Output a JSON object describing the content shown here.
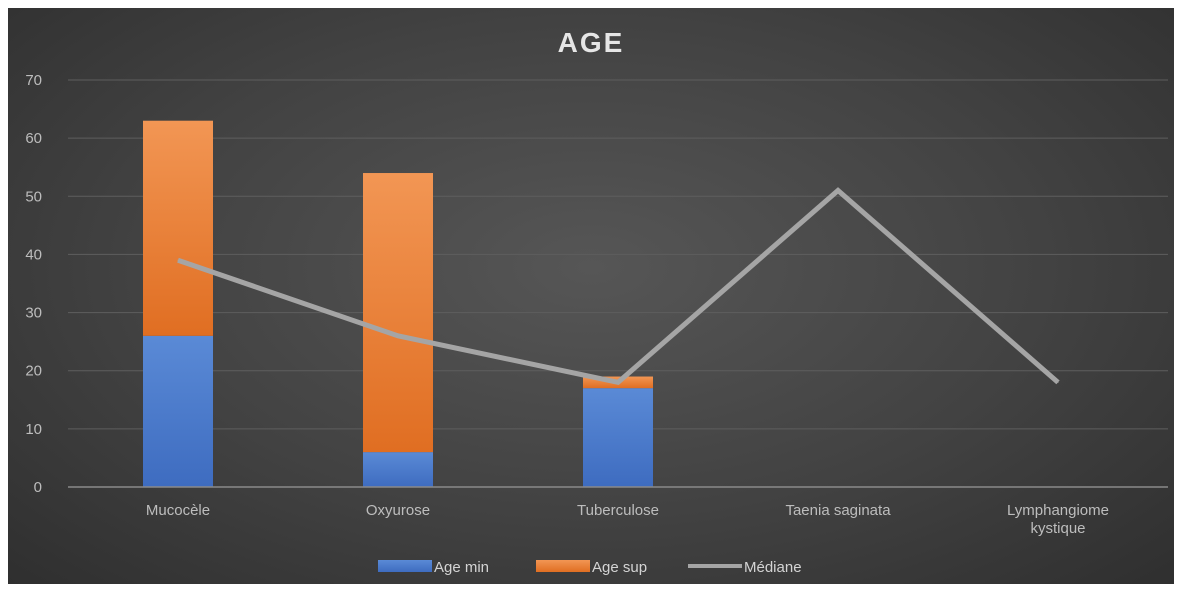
{
  "chart_data": {
    "type": "bar",
    "title": "AGE",
    "xlabel": "",
    "ylabel": "",
    "ylim": [
      0,
      70
    ],
    "yticks": [
      0,
      10,
      20,
      30,
      40,
      50,
      60,
      70
    ],
    "grid": true,
    "legend_position": "bottom",
    "stacked": true,
    "categories": [
      "Mucocèle",
      "Oxyurose",
      "Tuberculose",
      "Taenia saginata",
      "Lymphangiome kystique"
    ],
    "category_lines": [
      [
        "Mucocèle"
      ],
      [
        "Oxyurose"
      ],
      [
        "Tuberculose"
      ],
      [
        "Taenia saginata"
      ],
      [
        "Lymphangiome",
        "kystique"
      ]
    ],
    "series": [
      {
        "name": "Age min",
        "kind": "bar",
        "color": "#4472c4",
        "values": [
          26,
          6,
          17,
          null,
          null
        ]
      },
      {
        "name": "Age sup",
        "kind": "bar",
        "color": "#ed7d31",
        "values": [
          37,
          48,
          2,
          null,
          null
        ]
      },
      {
        "name": "Médiane",
        "kind": "line",
        "color": "#a5a5a5",
        "values": [
          39,
          26,
          18,
          51,
          18
        ]
      }
    ]
  }
}
